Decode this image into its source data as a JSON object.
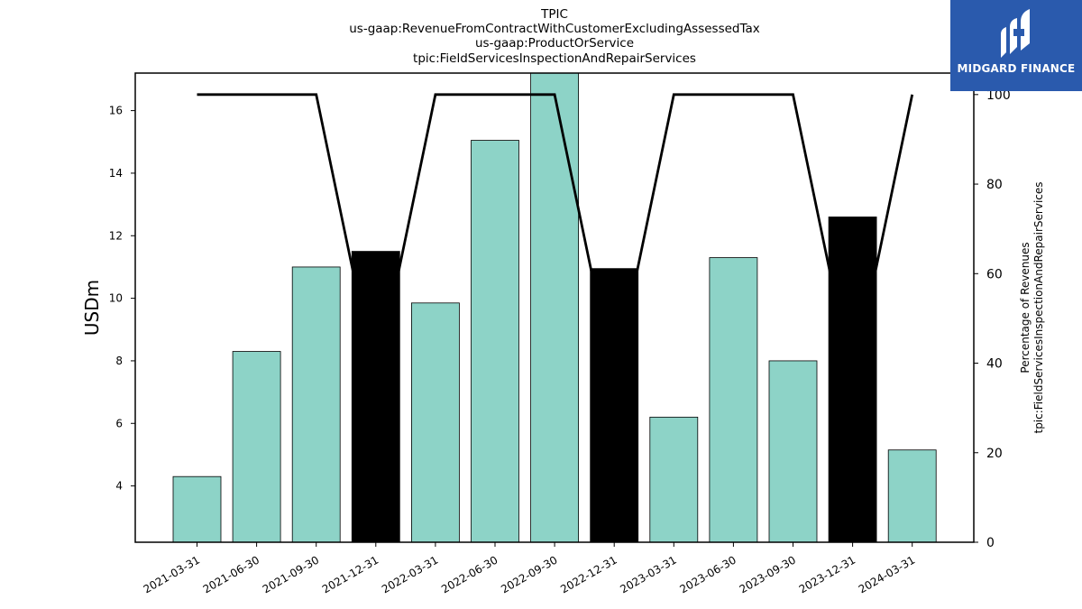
{
  "chart_data": {
    "type": "bar",
    "title_lines": [
      "TPIC",
      "us-gaap:RevenueFromContractWithCustomerExcludingAssessedTax",
      "us-gaap:ProductOrService",
      "tpic:FieldServicesInspectionAndRepairServices"
    ],
    "categories": [
      "2021-03-31",
      "2021-06-30",
      "2021-09-30",
      "2021-12-31",
      "2022-03-31",
      "2022-06-30",
      "2022-09-30",
      "2022-12-31",
      "2023-03-31",
      "2023-06-30",
      "2023-09-30",
      "2023-12-31",
      "2024-03-31"
    ],
    "values": [
      4.3,
      8.3,
      11.0,
      11.5,
      9.85,
      15.05,
      17.2,
      10.95,
      6.2,
      11.3,
      8.0,
      12.6,
      5.15
    ],
    "highlight": [
      false,
      false,
      false,
      true,
      false,
      false,
      false,
      true,
      false,
      false,
      false,
      true,
      false
    ],
    "ylabel": "USDm",
    "ylim": [
      2.2,
      17.2
    ],
    "yticks": [
      4,
      6,
      8,
      10,
      12,
      14,
      16
    ],
    "line_series": {
      "values": [
        100,
        100,
        100,
        36,
        100,
        100,
        100,
        36,
        100,
        100,
        100,
        36,
        100
      ],
      "ylabel_lines": [
        "Percentage of Revenues",
        "tpic:FieldServicesInspectionAndRepairServices"
      ],
      "ylim": [
        0,
        104.8
      ],
      "yticks": [
        0,
        20,
        40,
        60,
        80,
        100
      ]
    },
    "colors": {
      "bar": "#8dd3c7",
      "highlight": "#000000",
      "line": "#000000"
    },
    "grid": false,
    "legend": "none"
  },
  "logo": {
    "text": "MIDGARD FINANCE"
  }
}
